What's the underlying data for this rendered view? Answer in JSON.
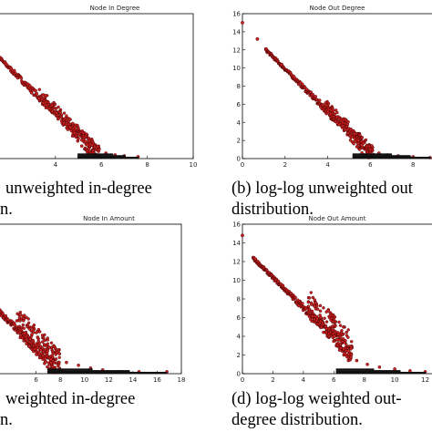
{
  "captions": {
    "a_line1": "unweighted in-degree",
    "a_line2": "n.",
    "b_line1": "(b) log-log unweighted out",
    "b_line2": "distribution.",
    "c_line1": "weighted in-degree",
    "c_line2": "n.",
    "d_line1": "(d) log-log weighted out-",
    "d_line2": "degree distribution."
  },
  "chart_data": [
    {
      "type": "scatter",
      "title": "Node In Degree",
      "xlim": [
        0,
        10
      ],
      "ylim": [
        0,
        16
      ],
      "xticks": [
        4,
        6,
        8,
        10
      ],
      "yticks": [],
      "series_color": "#cc1f1f",
      "edge_color": "#3a0000",
      "trend": {
        "intercept": 15.0,
        "slope": -2.5,
        "x_start": 0,
        "x_end": 6.0
      },
      "tail_points": [
        [
          5.0,
          2.2
        ],
        [
          5.3,
          1.9
        ],
        [
          5.6,
          1.5
        ],
        [
          5.9,
          1.0
        ],
        [
          6.2,
          0.6
        ],
        [
          6.6,
          0.4
        ],
        [
          7.0,
          0.3
        ],
        [
          7.6,
          0.2
        ]
      ]
    },
    {
      "type": "scatter",
      "title": "Node Out Degree",
      "xlim": [
        0,
        10
      ],
      "ylim": [
        0,
        16
      ],
      "xticks": [
        0,
        2,
        4,
        6,
        8
      ],
      "yticks": [
        0,
        2,
        4,
        6,
        8,
        10,
        12,
        14,
        16
      ],
      "series_color": "#cc1f1f",
      "edge_color": "#3a0000",
      "isolated_points": [
        [
          0.0,
          15.0
        ],
        [
          0.7,
          13.2
        ],
        [
          1.1,
          12.1
        ]
      ],
      "trend": {
        "intercept": 14.6,
        "slope": -2.35,
        "x_start": 1.1,
        "x_end": 6.2
      },
      "tail_points": [
        [
          5.6,
          1.5
        ],
        [
          6.0,
          1.0
        ],
        [
          6.4,
          0.6
        ],
        [
          6.8,
          0.4
        ],
        [
          7.3,
          0.3
        ],
        [
          8.0,
          0.2
        ],
        [
          8.8,
          0.1
        ]
      ]
    },
    {
      "type": "scatter",
      "title": "Node In Amount",
      "xlim": [
        0,
        18
      ],
      "ylim": [
        0,
        16
      ],
      "xticks": [
        6,
        8,
        10,
        12,
        14,
        16,
        18
      ],
      "yticks": [],
      "series_color": "#cc1f1f",
      "edge_color": "#3a0000",
      "trend": {
        "intercept": 10.5,
        "slope": -1.3,
        "x_start": 0,
        "x_end": 8.0
      },
      "tail_points": [
        [
          8.5,
          1.2
        ],
        [
          9.5,
          0.9
        ],
        [
          10.5,
          0.6
        ],
        [
          11.5,
          0.4
        ],
        [
          13.0,
          0.2
        ],
        [
          14.5,
          0.2
        ],
        [
          16.8,
          0.2
        ]
      ]
    },
    {
      "type": "scatter",
      "title": "Node Out Amount",
      "xlim": [
        0,
        14
      ],
      "ylim": [
        0,
        16
      ],
      "xticks": [
        0,
        2,
        4,
        6,
        8,
        10,
        12
      ],
      "yticks": [
        0,
        2,
        4,
        6,
        8,
        10,
        12,
        14,
        16
      ],
      "series_color": "#cc1f1f",
      "edge_color": "#3a0000",
      "isolated_points": [
        [
          0.0,
          14.8
        ]
      ],
      "trend": {
        "intercept": 13.5,
        "slope": -1.6,
        "x_start": 0.7,
        "x_end": 7.2
      },
      "tail_points": [
        [
          7.5,
          1.4
        ],
        [
          8.2,
          1.0
        ],
        [
          9.0,
          0.7
        ],
        [
          10.0,
          0.5
        ],
        [
          11.0,
          0.3
        ],
        [
          12.0,
          0.2
        ]
      ]
    }
  ]
}
